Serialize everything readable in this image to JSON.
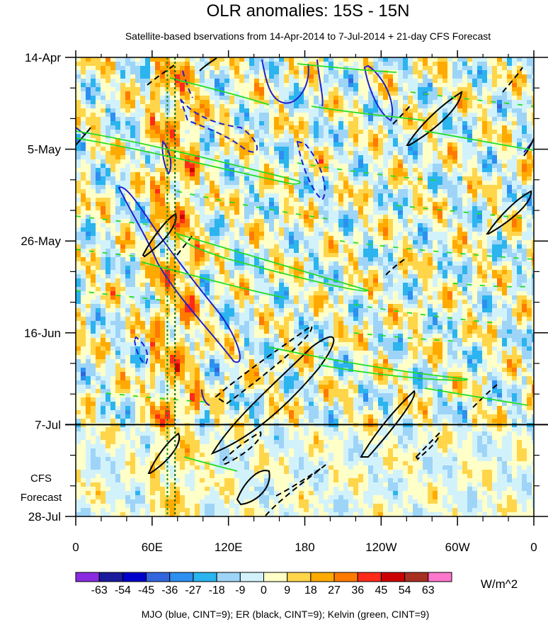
{
  "chart_data": {
    "type": "heatmap",
    "title": "OLR anomalies: 15S - 15N",
    "subtitle": "Satellite-based bservations from 14-Apr-2014 to 7-Jul-2014 + 21-day CFS Forecast",
    "x_ticks": [
      {
        "lon": 0,
        "label": "0"
      },
      {
        "lon": 60,
        "label": "60E"
      },
      {
        "lon": 120,
        "label": "120E"
      },
      {
        "lon": 180,
        "label": "180"
      },
      {
        "lon": 240,
        "label": "120W"
      },
      {
        "lon": 300,
        "label": "60W"
      },
      {
        "lon": 360,
        "label": "0"
      }
    ],
    "xlim": [
      0,
      360
    ],
    "y_ticks": [
      {
        "date": "2014-04-14",
        "label": "14-Apr"
      },
      {
        "date": "2014-05-05",
        "label": "5-May"
      },
      {
        "date": "2014-05-26",
        "label": "26-May"
      },
      {
        "date": "2014-06-16",
        "label": "16-Jun"
      },
      {
        "date": "2014-07-07",
        "label": "7-Jul"
      },
      {
        "date": "2014-07-28",
        "label": "28-Jul"
      }
    ],
    "ylim": [
      "2014-04-14",
      "2014-07-28"
    ],
    "y_reversed": true,
    "observed_end_date": "2014-07-07",
    "forecast_label_line1": "CFS",
    "forecast_label_line2": "Forecast",
    "mjo_reference_lons": [
      72,
      78
    ],
    "colorbar": {
      "unit": "W/m^2",
      "levels": [
        -63,
        -54,
        -45,
        -36,
        -27,
        -18,
        -9,
        0,
        9,
        18,
        27,
        36,
        45,
        54,
        63
      ],
      "labels": [
        "-63",
        "-54",
        "-45",
        "-36",
        "-27",
        "-18",
        "-9",
        "0",
        "9",
        "18",
        "27",
        "36",
        "45",
        "54",
        "63"
      ],
      "colors": [
        "#8a2be2",
        "#1a1a9c",
        "#0000cc",
        "#3366dd",
        "#2d8ff0",
        "#2bb4ee",
        "#9ed4f7",
        "#d2f2fb",
        "#ffffc8",
        "#ffd54a",
        "#ffaa00",
        "#ff7a00",
        "#ff2a1a",
        "#cc0000",
        "#a83020",
        "#ff77cc"
      ]
    },
    "contour_legend": "MJO (blue, CINT=9); ER (black, CINT=9); Kelvin (green, CINT=9)",
    "contours": {
      "MJO": {
        "color": "#1f1fd0"
      },
      "ER": {
        "color": "#000000"
      },
      "Kelvin": {
        "color": "#22dd22"
      }
    }
  }
}
